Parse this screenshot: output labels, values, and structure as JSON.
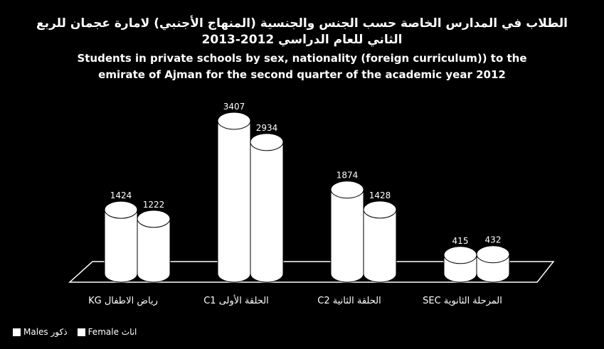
{
  "chart_data": {
    "type": "bar",
    "title_ar_line1": "الطلاب في المدارس الخاصة حسب الجنس والجنسية (المنهاج الأجنبي) لامارة عجمان للربع",
    "title_ar_line2": "الثاني للعام الدراسي 2012-2013",
    "title_en_line1": "Students in private schools by sex, nationality  (foreign curriculum)) to the",
    "title_en_line2": "emirate of Ajman for the second quarter of the academic year 2012",
    "categories": [
      "KG رياض الاطفال",
      "C1 الحلقة الأولى",
      "C2 الحلقة الثانية",
      "SEC المرحلة الثانوية"
    ],
    "series": [
      {
        "name": "Males ذكور",
        "values": [
          1424,
          3407,
          1874,
          415
        ]
      },
      {
        "name": "Female اناث",
        "values": [
          1222,
          2934,
          1428,
          432
        ]
      }
    ],
    "ylim": [
      0,
      3407
    ],
    "bar_color": "#ffffff",
    "background_color": "#000000",
    "legend_position": "bottom-left"
  }
}
